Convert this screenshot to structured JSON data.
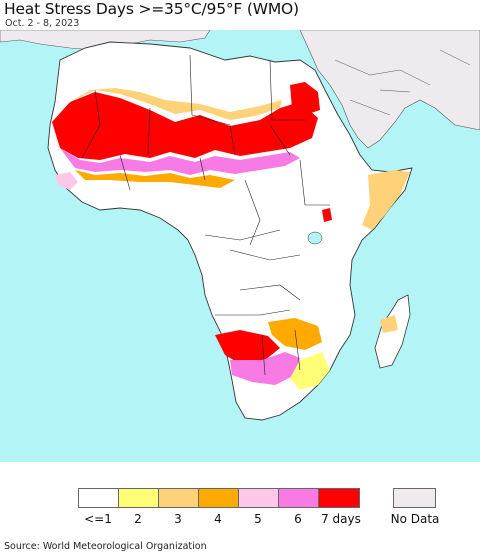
{
  "header": {
    "title": "Heat Stress Days >=35°C/95°F (WMO)",
    "date_range": "Oct. 2 - 8, 2023"
  },
  "map": {
    "ocean_color": "#b3f5f7",
    "land_color": "#ffffff",
    "no_data_color": "#eeeaee",
    "border_color": "#333333"
  },
  "legend": {
    "items": [
      {
        "label": "<=1",
        "color": "#ffffff"
      },
      {
        "label": "2",
        "color": "#ffff77"
      },
      {
        "label": "3",
        "color": "#ffd27a"
      },
      {
        "label": "4",
        "color": "#ffaa00"
      },
      {
        "label": "5",
        "color": "#ffc8e8"
      },
      {
        "label": "6",
        "color": "#f77ae5"
      },
      {
        "label": "7 days",
        "color": "#ff0000"
      }
    ],
    "no_data": {
      "label": "No Data",
      "color": "#eeeaee"
    }
  },
  "footer": {
    "source": "Source: World Meteorological Organization"
  }
}
